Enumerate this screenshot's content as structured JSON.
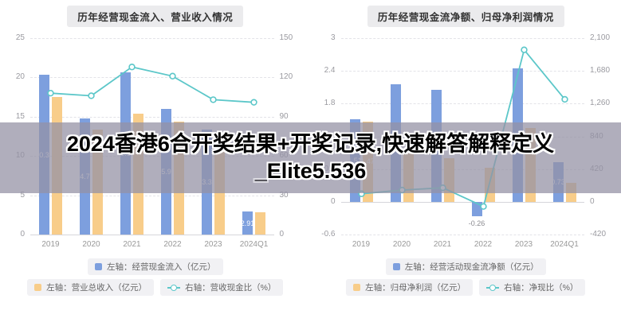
{
  "overlay": {
    "line1": "2024香港6合开奖结果+开奖记录,快速解答解释定义",
    "line2": "_Elite5.536",
    "bg": "rgba(148,146,165,0.74)"
  },
  "colors": {
    "bar_blue": "#7d9fde",
    "bar_orange": "#f8cd8a",
    "line_teal": "#5cc7c9"
  },
  "chart_data": [
    {
      "type": "bar",
      "title": "历年经营现金流入、营业收入情况",
      "categories": [
        "2019",
        "2020",
        "2021",
        "2022",
        "2023",
        "2024Q1"
      ],
      "left_axis": {
        "min": 0,
        "max": 25,
        "ticks": [
          0,
          5,
          10,
          15,
          20,
          25
        ],
        "labels": [
          "0",
          "5",
          "10",
          "15",
          "20",
          "25"
        ]
      },
      "right_axis": {
        "min": 0,
        "max": 150,
        "ticks": [
          0,
          30,
          60,
          90,
          120,
          150
        ],
        "labels": [
          "0",
          "30",
          "60",
          "90",
          "120",
          "150"
        ]
      },
      "series": [
        {
          "name": "左轴：经营现金流入（亿元）",
          "type": "bar",
          "axis": "left",
          "color_key": "bar_blue",
          "values": [
            20.33,
            14.75,
            20.69,
            15.95,
            13.35,
            2.91
          ],
          "labels": [
            "20.33",
            "14.75",
            "20.69",
            "15.95",
            "13.35",
            "2.91"
          ]
        },
        {
          "name": "左轴：营业总收入（亿元）",
          "type": "bar",
          "axis": "left",
          "color_key": "bar_orange",
          "values": [
            17.5,
            13.4,
            15.4,
            14.4,
            12.9,
            2.8
          ],
          "labels": [
            null,
            null,
            null,
            null,
            null,
            null
          ]
        },
        {
          "name": "右轴：营收现金比（%）",
          "type": "line",
          "axis": "right",
          "color_key": "line_teal",
          "values": [
            108,
            106,
            128,
            121,
            103,
            101
          ]
        }
      ]
    },
    {
      "type": "bar",
      "title": "历年经营现金流净额、归母净利润情况",
      "categories": [
        "2019",
        "2020",
        "2021",
        "2022",
        "2023",
        "2024Q1"
      ],
      "left_axis": {
        "min": -0.6,
        "max": 3,
        "ticks": [
          -0.6,
          0,
          0.6,
          1.2,
          1.8,
          2.4,
          3
        ],
        "labels": [
          "-0.6",
          "0",
          "0.6",
          "1.2",
          "1.8",
          "2.4",
          "3"
        ]
      },
      "right_axis": {
        "min": -420,
        "max": 2100,
        "ticks": [
          -420,
          0,
          420,
          840,
          1260,
          1680,
          2100
        ],
        "labels": [
          "-420",
          "0",
          "420",
          "840",
          "1,260",
          "1,680",
          "2,100"
        ]
      },
      "series": [
        {
          "name": "左轴：经营活动现金流净额（亿元）",
          "type": "bar",
          "axis": "left",
          "color_key": "bar_blue",
          "values": [
            1.51,
            2.15,
            2.05,
            -0.26,
            2.45,
            0.73
          ],
          "labels": [
            "1.51",
            "2.15",
            "2.05",
            "-0.26",
            "2.45",
            "0.73"
          ]
        },
        {
          "name": "左轴：归母净利润（亿元）",
          "type": "bar",
          "axis": "left",
          "color_key": "bar_orange",
          "values": [
            1.47,
            0.95,
            0.8,
            0.62,
            1.35,
            0.35
          ],
          "labels": [
            "1.47",
            null,
            null,
            null,
            null,
            null
          ]
        },
        {
          "name": "右轴：净现比（%）",
          "type": "line",
          "axis": "right",
          "color_key": "line_teal",
          "values": [
            103,
            150,
            180,
            -60,
            1950,
            1315
          ]
        }
      ]
    }
  ]
}
